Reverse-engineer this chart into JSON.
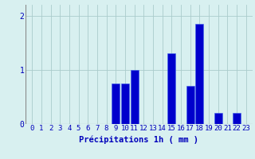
{
  "hours": [
    0,
    1,
    2,
    3,
    4,
    5,
    6,
    7,
    8,
    9,
    10,
    11,
    12,
    13,
    14,
    15,
    16,
    17,
    18,
    19,
    20,
    21,
    22,
    23
  ],
  "values": [
    0,
    0,
    0,
    0,
    0,
    0,
    0,
    0,
    0,
    0.75,
    0.75,
    1.0,
    0,
    0,
    0,
    1.3,
    0,
    0.7,
    1.85,
    0,
    0.2,
    0,
    0.2,
    0
  ],
  "bar_color": "#0000cc",
  "bar_edge_color": "#4466ee",
  "background_color": "#d8f0f0",
  "grid_color": "#aacccc",
  "text_color": "#0000bb",
  "xlabel": "Précipitations 1h ( mm )",
  "ylim": [
    0,
    2.2
  ],
  "yticks": [
    0,
    1,
    2
  ],
  "xlabel_fontsize": 7.5,
  "tick_fontsize": 6.5
}
